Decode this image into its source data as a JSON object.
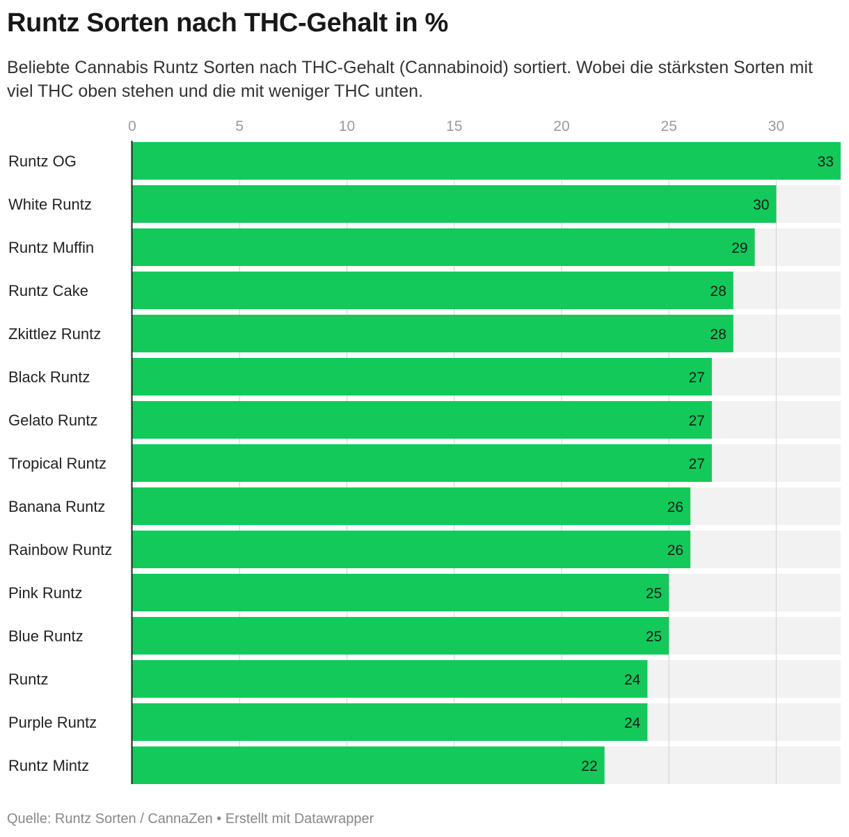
{
  "title": "Runtz Sorten nach THC-Gehalt in %",
  "subtitle": "Beliebte Cannabis Runtz Sorten nach THC-Gehalt (Cannabinoid) sortiert. Wobei die stärksten Sorten mit viel THC oben stehen und die mit weniger THC unten.",
  "source": "Quelle: Runtz Sorten / CannaZen • Erstellt mit Datawrapper",
  "chart_data": {
    "type": "bar",
    "orientation": "horizontal",
    "categories": [
      "Runtz OG",
      "White Runtz",
      "Runtz Muffin",
      "Runtz Cake",
      "Zkittlez Runtz",
      "Black Runtz",
      "Gelato Runtz",
      "Tropical Runtz",
      "Banana Runtz",
      "Rainbow Runtz",
      "Pink Runtz",
      "Blue Runtz",
      "Runtz",
      "Purple Runtz",
      "Runtz Mintz"
    ],
    "values": [
      33,
      30,
      29,
      28,
      28,
      27,
      27,
      27,
      26,
      26,
      25,
      25,
      24,
      24,
      22
    ],
    "xlim": [
      0,
      33
    ],
    "xticks": [
      0,
      5,
      10,
      15,
      20,
      25,
      30
    ],
    "tick_position": "top",
    "bar_color": "#13c95a",
    "background_bar_color": "#f2f2f2",
    "gridline_color": "#d6d6d6",
    "grid": true
  }
}
